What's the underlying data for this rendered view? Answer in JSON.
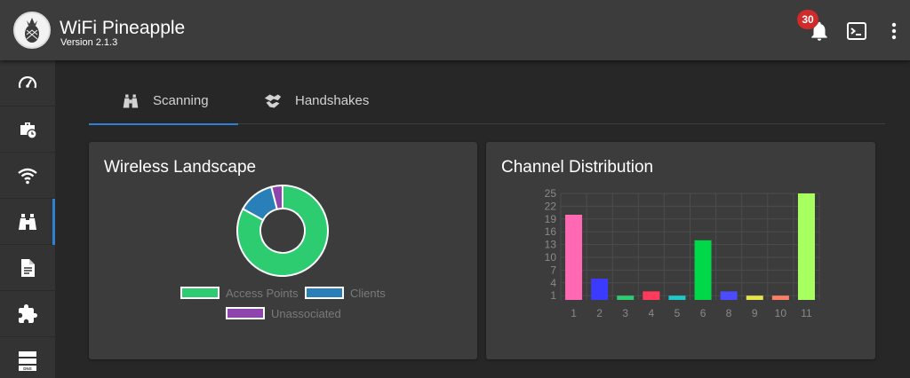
{
  "header": {
    "title": "WiFi Pineapple",
    "version": "Version 2.1.3",
    "notification_count": "30",
    "icons": [
      "pineapple-logo",
      "bell-icon",
      "terminal-icon",
      "more-vert-icon"
    ]
  },
  "sidebar": {
    "items": [
      {
        "name": "dashboard",
        "icon": "speedometer-icon"
      },
      {
        "name": "campaigns",
        "icon": "briefcase-clock-icon"
      },
      {
        "name": "pineap",
        "icon": "wifi-icon"
      },
      {
        "name": "recon",
        "icon": "binoculars-icon",
        "active": true
      },
      {
        "name": "logging",
        "icon": "document-icon"
      },
      {
        "name": "modules",
        "icon": "puzzle-icon"
      },
      {
        "name": "dns",
        "icon": "dns-server-icon"
      }
    ],
    "dns_label": "DNS"
  },
  "tabs": [
    {
      "label": "Scanning",
      "icon": "binoculars-icon",
      "active": true
    },
    {
      "label": "Handshakes",
      "icon": "handshake-icon",
      "active": false
    }
  ],
  "cards": {
    "landscape_title": "Wireless Landscape",
    "channel_title": "Channel Distribution"
  },
  "colors": {
    "accent": "#2f7fd4",
    "badge": "#d02a2a",
    "access_points": "#2ecc71",
    "clients": "#2980b9",
    "unassociated": "#8e44ad"
  },
  "chart_data": [
    {
      "type": "pie",
      "title": "Wireless Landscape",
      "categories": [
        "Access Points",
        "Clients",
        "Unassociated"
      ],
      "values": [
        83,
        13,
        4
      ],
      "colors": [
        "#2ecc71",
        "#2980b9",
        "#8e44ad"
      ]
    },
    {
      "type": "bar",
      "title": "Channel Distribution",
      "categories": [
        "1",
        "2",
        "3",
        "4",
        "5",
        "6",
        "8",
        "9",
        "10",
        "11"
      ],
      "values": [
        20,
        5,
        1,
        2,
        1,
        14,
        2,
        1,
        1,
        25
      ],
      "colors": [
        "#ff69b4",
        "#3b3bff",
        "#2ecc71",
        "#ff3b5c",
        "#20c9c9",
        "#00d84a",
        "#4b4bff",
        "#e6e64a",
        "#ff7f66",
        "#a8ff60"
      ],
      "yticks": [
        1,
        4,
        7,
        10,
        13,
        16,
        19,
        22,
        25
      ],
      "ylim": [
        0,
        25
      ],
      "grid": true
    }
  ]
}
